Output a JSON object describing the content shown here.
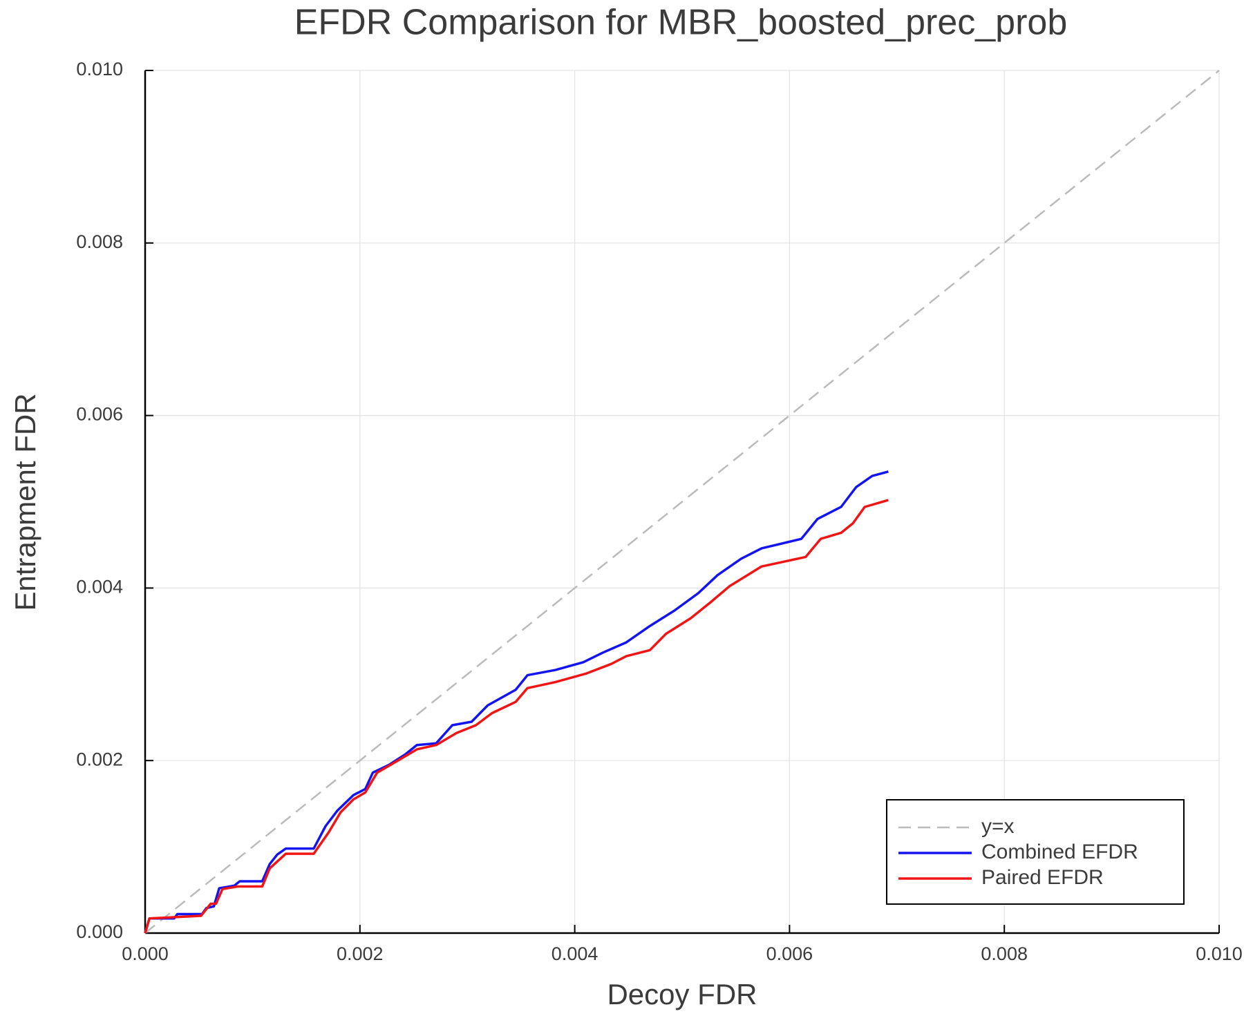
{
  "chart_data": {
    "type": "line",
    "title": "EFDR Comparison for MBR_boosted_prec_prob",
    "xlabel": "Decoy FDR",
    "ylabel": "Entrapment FDR",
    "xlim": [
      0,
      0.01
    ],
    "ylim": [
      0,
      0.01
    ],
    "xticks": [
      {
        "value": 0,
        "label": "0.000"
      },
      {
        "value": 0.002,
        "label": "0.002"
      },
      {
        "value": 0.004,
        "label": "0.004"
      },
      {
        "value": 0.006,
        "label": "0.006"
      },
      {
        "value": 0.008,
        "label": "0.008"
      },
      {
        "value": 0.01,
        "label": "0.010"
      }
    ],
    "yticks": [
      {
        "value": 0,
        "label": "0.000"
      },
      {
        "value": 0.002,
        "label": "0.002"
      },
      {
        "value": 0.004,
        "label": "0.004"
      },
      {
        "value": 0.006,
        "label": "0.006"
      },
      {
        "value": 0.008,
        "label": "0.008"
      },
      {
        "value": 0.01,
        "label": "0.010"
      }
    ],
    "grid": true,
    "legend": "lower right",
    "series": [
      {
        "name": "y=x",
        "color": "#bbbbbb",
        "dashed": true,
        "x": [
          0,
          0.01
        ],
        "values": [
          0,
          0.01
        ]
      },
      {
        "name": "Combined EFDR",
        "color": "#1414f0",
        "dashed": false,
        "x": [
          0,
          4e-05,
          0.00027,
          0.0003,
          0.00053,
          0.00057,
          0.00064,
          0.00069,
          0.00083,
          0.00088,
          0.00109,
          0.00116,
          0.00123,
          0.00131,
          0.00157,
          0.00168,
          0.00179,
          0.00194,
          0.00205,
          0.00212,
          0.00227,
          0.00242,
          0.00253,
          0.00271,
          0.00286,
          0.00304,
          0.00319,
          0.00345,
          0.00356,
          0.00382,
          0.00408,
          0.00426,
          0.00448,
          0.0047,
          0.00493,
          0.00515,
          0.00533,
          0.00555,
          0.00574,
          0.00611,
          0.00626,
          0.00648,
          0.00662,
          0.00677,
          0.00692
        ],
        "values": [
          0,
          0.00017,
          0.00017,
          0.00022,
          0.00022,
          0.00029,
          0.00031,
          0.00052,
          0.00055,
          0.0006,
          0.0006,
          0.0008,
          0.00091,
          0.00098,
          0.00098,
          0.00124,
          0.00142,
          0.0016,
          0.00167,
          0.00186,
          0.00195,
          0.00207,
          0.00218,
          0.0022,
          0.00241,
          0.00245,
          0.00264,
          0.00282,
          0.00299,
          0.00305,
          0.00314,
          0.00325,
          0.00337,
          0.00356,
          0.00374,
          0.00394,
          0.00415,
          0.00434,
          0.00446,
          0.00457,
          0.0048,
          0.00494,
          0.00517,
          0.0053,
          0.00535
        ]
      },
      {
        "name": "Paired EFDR",
        "color": "#f01414",
        "dashed": false,
        "x": [
          0,
          4e-05,
          0.00052,
          0.00061,
          0.00066,
          0.00072,
          0.00086,
          0.00109,
          0.00116,
          0.00131,
          0.00157,
          0.00171,
          0.00182,
          0.00194,
          0.00205,
          0.00216,
          0.00234,
          0.00253,
          0.00271,
          0.0029,
          0.00308,
          0.00323,
          0.00345,
          0.00356,
          0.00382,
          0.00411,
          0.00434,
          0.00448,
          0.0047,
          0.00485,
          0.00508,
          0.00526,
          0.00544,
          0.00574,
          0.00615,
          0.00629,
          0.00648,
          0.00659,
          0.0067,
          0.00692
        ],
        "values": [
          0,
          0.00017,
          0.0002,
          0.00034,
          0.00034,
          0.00051,
          0.00054,
          0.00054,
          0.00075,
          0.00092,
          0.00092,
          0.00117,
          0.0014,
          0.00155,
          0.00163,
          0.00186,
          0.00199,
          0.00213,
          0.00218,
          0.00232,
          0.00241,
          0.00255,
          0.00268,
          0.00284,
          0.00291,
          0.00301,
          0.00312,
          0.00321,
          0.00328,
          0.00347,
          0.00365,
          0.00383,
          0.00402,
          0.00425,
          0.00436,
          0.00457,
          0.00464,
          0.00475,
          0.00494,
          0.00502
        ]
      }
    ]
  }
}
